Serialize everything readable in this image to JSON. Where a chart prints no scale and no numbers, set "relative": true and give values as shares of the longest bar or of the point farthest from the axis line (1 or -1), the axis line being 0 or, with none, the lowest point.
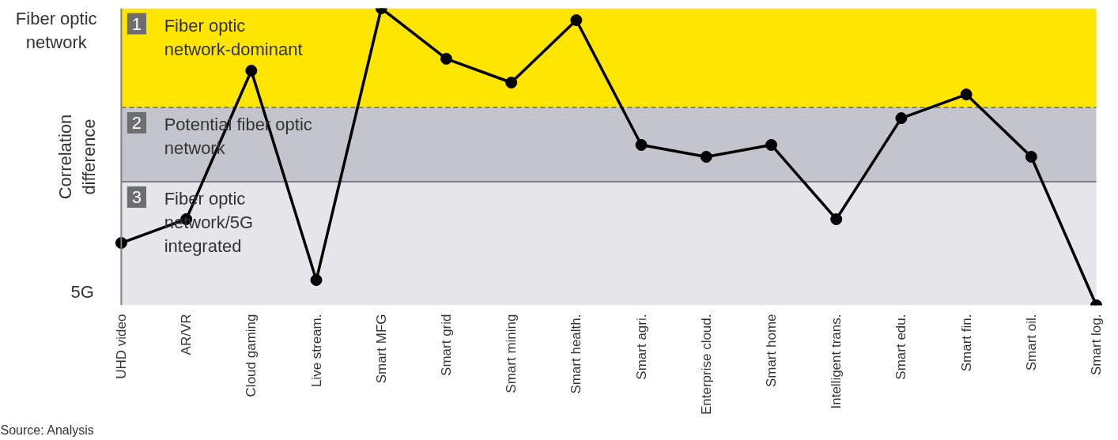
{
  "chart_data": {
    "type": "line",
    "relative": true,
    "ylabel": "Correlation\ndifference",
    "categories": [
      "UHD video",
      "AR/VR",
      "Cloud gaming",
      "Live stream.",
      "Smart MFG",
      "Smart grid",
      "Smart mining",
      "Smart health.",
      "Smart agri.",
      "Enterprise cloud.",
      "Smart home",
      "Intelligent trans.",
      "Smart edu.",
      "Smart fin.",
      "Smart oil.",
      "Smart log."
    ],
    "series": [
      {
        "color": "#000000",
        "values": [
          0.21,
          0.29,
          0.79,
          0.085,
          1,
          0.83,
          0.75,
          0.96,
          0.54,
          0.5,
          0.54,
          0.29,
          0.63,
          0.71,
          0.5,
          0
        ]
      }
    ],
    "marker": "circle",
    "line_style": "solid",
    "grid": false,
    "bands": [
      {
        "axis": "y",
        "from": 0.666,
        "to": 1,
        "label": "Fiber optic\nnetwork-dominant",
        "color": "#ffe600"
      },
      {
        "axis": "y",
        "from": 0.416,
        "to": 0.666,
        "label": "Potential fiber optic\nnetwork",
        "color": "#c4c4cc"
      },
      {
        "axis": "y",
        "from": 0,
        "to": 0.416,
        "label": "Fiber optic\nnetwork/5G\nintegrated",
        "color": "#e6e6ea"
      }
    ],
    "ref_lines": [
      {
        "axis": "y",
        "value": 0.666,
        "color": "#7f7f7f",
        "line_style": "dashed"
      },
      {
        "axis": "y",
        "value": 0.416,
        "color": "#7f7f7f",
        "line_style": "solid"
      }
    ],
    "annotations": [
      "1",
      "2",
      "3",
      "Fiber optic\nnetwork",
      "5G",
      "Source: Analysis"
    ]
  }
}
